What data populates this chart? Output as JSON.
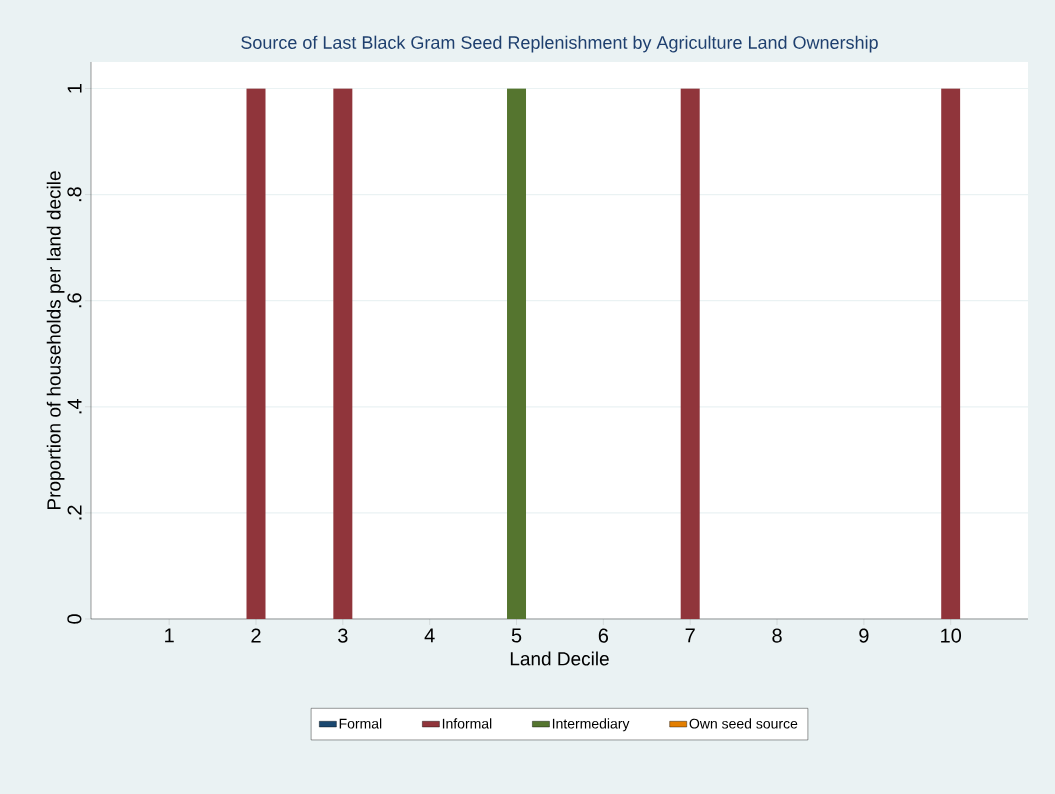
{
  "chart_data": {
    "type": "bar",
    "stacked": true,
    "title": "Source of Last Black Gram Seed Replenishment by Agriculture Land Ownership",
    "xlabel": "Land Decile",
    "ylabel": "Proportion of households per land decile",
    "categories": [
      "1",
      "2",
      "3",
      "4",
      "5",
      "6",
      "7",
      "8",
      "9",
      "10"
    ],
    "series": [
      {
        "name": "Formal",
        "color": "#1a476f",
        "values": [
          0,
          0,
          0,
          0,
          0,
          0,
          0,
          0,
          0,
          0
        ]
      },
      {
        "name": "Informal",
        "color": "#90353b",
        "values": [
          0,
          1,
          1,
          0,
          0,
          0,
          1,
          0,
          0,
          1
        ]
      },
      {
        "name": "Intermediary",
        "color": "#55752f",
        "values": [
          0,
          0,
          0,
          0,
          1,
          0,
          0,
          0,
          0,
          0
        ]
      },
      {
        "name": "Own seed source",
        "color": "#e37e00",
        "values": [
          0,
          0,
          0,
          0,
          0,
          0,
          0,
          0,
          0,
          0
        ]
      }
    ],
    "ylim": [
      0,
      1.05
    ],
    "yticks": [
      0,
      {
        "value": 0.2,
        "label": ".2"
      },
      {
        "value": 0.4,
        "label": ".4"
      },
      {
        "value": 0.6,
        "label": ".6"
      },
      {
        "value": 0.8,
        "label": ".8"
      },
      1
    ],
    "grid": "y",
    "legend": "bottom"
  }
}
